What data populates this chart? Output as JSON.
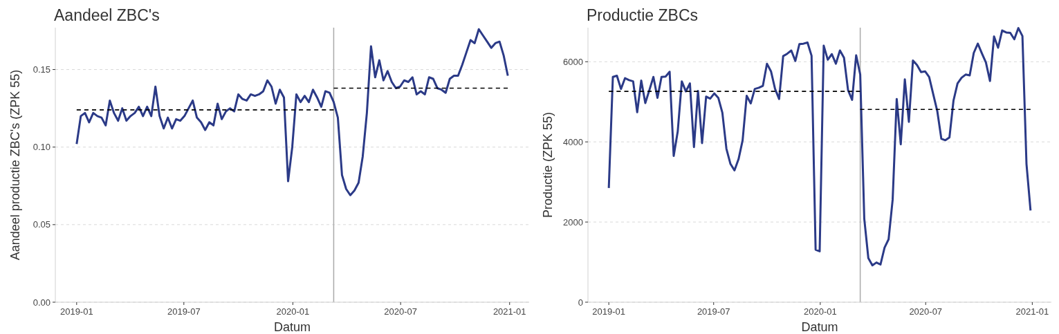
{
  "chart_data": [
    {
      "type": "line",
      "title": "Aandeel ZBC's",
      "xlabel": "Datum",
      "ylabel": "Aandeel productie ZBC's (ZPK 55)",
      "x": [
        "2019-01-01",
        "2019-01-08",
        "2019-01-15",
        "2019-01-22",
        "2019-01-29",
        "2019-02-05",
        "2019-02-12",
        "2019-02-19",
        "2019-02-26",
        "2019-03-05",
        "2019-03-12",
        "2019-03-19",
        "2019-03-26",
        "2019-04-02",
        "2019-04-09",
        "2019-04-16",
        "2019-04-23",
        "2019-04-30",
        "2019-05-07",
        "2019-05-14",
        "2019-05-21",
        "2019-05-28",
        "2019-06-04",
        "2019-06-11",
        "2019-06-18",
        "2019-06-25",
        "2019-07-02",
        "2019-07-09",
        "2019-07-16",
        "2019-07-23",
        "2019-07-30",
        "2019-08-06",
        "2019-08-13",
        "2019-08-20",
        "2019-08-27",
        "2019-09-03",
        "2019-09-10",
        "2019-09-17",
        "2019-09-24",
        "2019-10-01",
        "2019-10-08",
        "2019-10-15",
        "2019-10-22",
        "2019-10-29",
        "2019-11-05",
        "2019-11-12",
        "2019-11-19",
        "2019-11-26",
        "2019-12-03",
        "2019-12-10",
        "2019-12-17",
        "2019-12-24",
        "2019-12-31",
        "2020-01-07",
        "2020-01-14",
        "2020-01-21",
        "2020-01-28",
        "2020-02-04",
        "2020-02-11",
        "2020-02-18",
        "2020-02-25",
        "2020-03-03",
        "2020-03-10",
        "2020-03-17",
        "2020-03-24",
        "2020-03-31",
        "2020-04-07",
        "2020-04-14",
        "2020-04-21",
        "2020-04-28",
        "2020-05-05",
        "2020-05-12",
        "2020-05-19",
        "2020-05-26",
        "2020-06-02",
        "2020-06-09",
        "2020-06-16",
        "2020-06-23",
        "2020-06-30",
        "2020-07-07",
        "2020-07-14",
        "2020-07-21",
        "2020-07-28",
        "2020-08-04",
        "2020-08-11",
        "2020-08-18",
        "2020-08-25",
        "2020-09-01",
        "2020-09-08",
        "2020-09-15",
        "2020-09-22",
        "2020-09-29",
        "2020-10-06",
        "2020-10-13",
        "2020-10-20",
        "2020-10-27",
        "2020-11-03",
        "2020-11-10",
        "2020-11-17",
        "2020-11-24",
        "2020-12-01",
        "2020-12-08",
        "2020-12-15",
        "2020-12-22",
        "2020-12-29"
      ],
      "xlim": [
        "2018-11-26",
        "2021-02-03"
      ],
      "xticks": [
        "2019-01",
        "2019-07",
        "2020-01",
        "2020-07",
        "2021-01"
      ],
      "ylim": [
        0,
        0.177
      ],
      "yticks": [
        {
          "value": 0,
          "label": "0.00"
        },
        {
          "value": 0.05,
          "label": "0.05"
        },
        {
          "value": 0.1,
          "label": "0.10"
        },
        {
          "value": 0.15,
          "label": "0.15"
        }
      ],
      "grid": "y",
      "ref_lines": [
        {
          "axis": "x",
          "value": "2020-03-10",
          "color": "#aaaaaa"
        }
      ],
      "series": [
        {
          "color": "#2b3a87",
          "values": [
            0.102,
            0.12,
            0.122,
            0.116,
            0.122,
            0.12,
            0.119,
            0.114,
            0.13,
            0.122,
            0.117,
            0.125,
            0.117,
            0.12,
            0.122,
            0.126,
            0.12,
            0.126,
            0.12,
            0.139,
            0.12,
            0.112,
            0.119,
            0.112,
            0.118,
            0.117,
            0.12,
            0.125,
            0.13,
            0.119,
            0.116,
            0.111,
            0.116,
            0.114,
            0.128,
            0.118,
            0.123,
            0.125,
            0.123,
            0.134,
            0.131,
            0.13,
            0.134,
            0.133,
            0.134,
            0.136,
            0.143,
            0.139,
            0.128,
            0.137,
            0.132,
            0.078,
            0.1,
            0.134,
            0.129,
            0.133,
            0.129,
            0.137,
            0.132,
            0.126,
            0.136,
            0.135,
            0.129,
            0.119,
            0.082,
            0.073,
            0.069,
            0.072,
            0.077,
            0.094,
            0.122,
            0.165,
            0.145,
            0.156,
            0.143,
            0.149,
            0.142,
            0.138,
            0.139,
            0.143,
            0.142,
            0.145,
            0.134,
            0.136,
            0.134,
            0.145,
            0.144,
            0.138,
            0.137,
            0.135,
            0.144,
            0.146,
            0.146,
            0.153,
            0.161,
            0.169,
            0.167,
            0.176,
            0.172,
            0.168,
            0.164,
            0.167,
            0.168,
            0.159,
            0.146
          ]
        },
        {
          "type": "line",
          "x": [
            "2019-01-01",
            "2020-03-10"
          ],
          "values": [
            0.124,
            0.124
          ],
          "color": "#000000",
          "line_style": "dashed"
        },
        {
          "type": "line",
          "x": [
            "2020-03-10",
            "2020-12-29"
          ],
          "values": [
            0.138,
            0.138
          ],
          "color": "#000000",
          "line_style": "dashed"
        }
      ]
    },
    {
      "type": "line",
      "title": "Productie ZBCs",
      "xlabel": "Datum",
      "ylabel": "Productie (ZPK 55)",
      "x": [
        "2019-01-01",
        "2019-01-08",
        "2019-01-15",
        "2019-01-22",
        "2019-01-29",
        "2019-02-05",
        "2019-02-12",
        "2019-02-19",
        "2019-02-26",
        "2019-03-05",
        "2019-03-12",
        "2019-03-19",
        "2019-03-26",
        "2019-04-02",
        "2019-04-09",
        "2019-04-16",
        "2019-04-23",
        "2019-04-30",
        "2019-05-07",
        "2019-05-14",
        "2019-05-21",
        "2019-05-28",
        "2019-06-04",
        "2019-06-11",
        "2019-06-18",
        "2019-06-25",
        "2019-07-02",
        "2019-07-09",
        "2019-07-16",
        "2019-07-23",
        "2019-07-30",
        "2019-08-06",
        "2019-08-13",
        "2019-08-20",
        "2019-08-27",
        "2019-09-03",
        "2019-09-10",
        "2019-09-17",
        "2019-09-24",
        "2019-10-01",
        "2019-10-08",
        "2019-10-15",
        "2019-10-22",
        "2019-10-29",
        "2019-11-05",
        "2019-11-12",
        "2019-11-19",
        "2019-11-26",
        "2019-12-03",
        "2019-12-10",
        "2019-12-17",
        "2019-12-24",
        "2019-12-31",
        "2020-01-07",
        "2020-01-14",
        "2020-01-21",
        "2020-01-28",
        "2020-02-04",
        "2020-02-11",
        "2020-02-18",
        "2020-02-25",
        "2020-03-03",
        "2020-03-10",
        "2020-03-17",
        "2020-03-24",
        "2020-03-31",
        "2020-04-07",
        "2020-04-14",
        "2020-04-21",
        "2020-04-28",
        "2020-05-05",
        "2020-05-12",
        "2020-05-19",
        "2020-05-26",
        "2020-06-02",
        "2020-06-09",
        "2020-06-16",
        "2020-06-23",
        "2020-06-30",
        "2020-07-07",
        "2020-07-14",
        "2020-07-21",
        "2020-07-28",
        "2020-08-04",
        "2020-08-11",
        "2020-08-18",
        "2020-08-25",
        "2020-09-01",
        "2020-09-08",
        "2020-09-15",
        "2020-09-22",
        "2020-09-29",
        "2020-10-06",
        "2020-10-13",
        "2020-10-20",
        "2020-10-27",
        "2020-11-03",
        "2020-11-10",
        "2020-11-17",
        "2020-11-24",
        "2020-12-01",
        "2020-12-08",
        "2020-12-15",
        "2020-12-22",
        "2020-12-29"
      ],
      "xlim": [
        "2018-11-26",
        "2021-02-03"
      ],
      "xticks": [
        "2019-01",
        "2019-07",
        "2020-01",
        "2020-07",
        "2021-01"
      ],
      "ylim": [
        0,
        6850
      ],
      "yticks": [
        0,
        2000,
        4000,
        6000
      ],
      "grid": "y",
      "ref_lines": [
        {
          "axis": "x",
          "value": "2020-03-10",
          "color": "#aaaaaa"
        }
      ],
      "series": [
        {
          "color": "#2b3a87",
          "values": [
            2850,
            5620,
            5650,
            5320,
            5590,
            5540,
            5510,
            4740,
            5530,
            4970,
            5290,
            5620,
            5100,
            5620,
            5630,
            5750,
            3650,
            4260,
            5510,
            5260,
            5460,
            3870,
            5270,
            3970,
            5130,
            5080,
            5210,
            5100,
            4730,
            3830,
            3450,
            3290,
            3570,
            4040,
            5150,
            4960,
            5320,
            5350,
            5400,
            5950,
            5760,
            5320,
            5070,
            6140,
            6200,
            6280,
            6020,
            6440,
            6450,
            6480,
            6150,
            1310,
            1270,
            6400,
            6050,
            6190,
            5950,
            6280,
            6100,
            5290,
            5050,
            6160,
            5680,
            2080,
            1100,
            920,
            990,
            940,
            1360,
            1570,
            2560,
            5070,
            3940,
            5560,
            4500,
            6030,
            5920,
            5740,
            5760,
            5620,
            5190,
            4770,
            4080,
            4040,
            4110,
            5030,
            5460,
            5600,
            5680,
            5660,
            6220,
            6450,
            6210,
            5980,
            5520,
            6630,
            6350,
            6780,
            6730,
            6720,
            6560,
            6840,
            6640,
            3450,
            2290
          ]
        },
        {
          "type": "line",
          "x": [
            "2019-01-01",
            "2020-03-10"
          ],
          "values": [
            5260,
            5260
          ],
          "color": "#000000",
          "line_style": "dashed"
        },
        {
          "type": "line",
          "x": [
            "2020-03-10",
            "2020-12-29"
          ],
          "values": [
            4810,
            4810
          ],
          "color": "#000000",
          "line_style": "dashed"
        }
      ]
    }
  ]
}
